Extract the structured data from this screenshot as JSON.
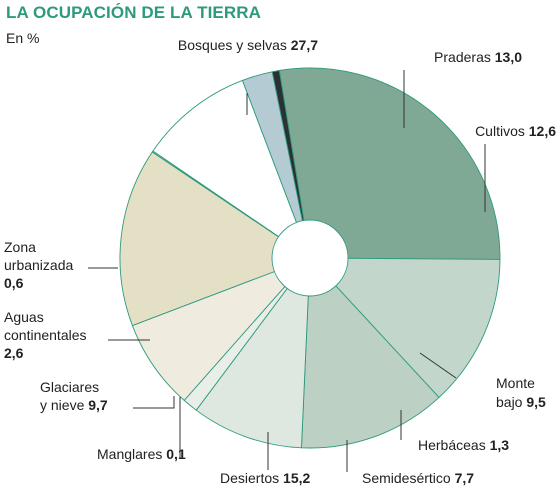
{
  "chart_data": {
    "type": "pie",
    "donut": true,
    "title": "LA OCUPACIÓN DE LA TIERRA",
    "subtitle": "En %",
    "slices": [
      {
        "name": "Bosques y selvas",
        "value": 27.7,
        "color": "#80a995",
        "label_lines": [
          "Bosques y selvas"
        ]
      },
      {
        "name": "Praderas",
        "value": 13.0,
        "color": "#c3d6cb",
        "label_lines": [
          "Praderas"
        ]
      },
      {
        "name": "Cultivos",
        "value": 12.6,
        "color": "#bcd0c4",
        "label_lines": [
          "Cultivos"
        ]
      },
      {
        "name": "Monte bajo",
        "value": 9.5,
        "color": "#dfe7e1",
        "label_lines": [
          "Monte",
          "bajo"
        ]
      },
      {
        "name": "Herbáceas",
        "value": 1.3,
        "color": "#eaeee9",
        "label_lines": [
          "Herbáceas"
        ]
      },
      {
        "name": "Semidesértico",
        "value": 7.7,
        "color": "#efebdf",
        "label_lines": [
          "Semidesértico"
        ]
      },
      {
        "name": "Desiertos",
        "value": 15.2,
        "color": "#e4e0c6",
        "label_lines": [
          "Desiertos"
        ]
      },
      {
        "name": "Manglares",
        "value": 0.1,
        "color": "#d7e0d9",
        "label_lines": [
          "Manglares"
        ]
      },
      {
        "name": "Glaciares y nieve",
        "value": 9.7,
        "color": "#ffffff",
        "label_lines": [
          "Glaciares",
          "y nieve"
        ]
      },
      {
        "name": "Aguas continentales",
        "value": 2.6,
        "color": "#b5cbd4",
        "label_lines": [
          "Aguas",
          "continentales"
        ]
      },
      {
        "name": "Zona urbanizada",
        "value": 0.6,
        "color": "#2c2f33",
        "label_lines": [
          "Zona",
          "urbanizada"
        ]
      }
    ],
    "value_labels": [
      "27,7",
      "13,0",
      "12,6",
      "9,5",
      "1,3",
      "7,7",
      "15,2",
      "0,1",
      "9,7",
      "2,6",
      "0,6"
    ],
    "line_color": "#2e9a7c",
    "title_color": "#2e9a7c"
  }
}
